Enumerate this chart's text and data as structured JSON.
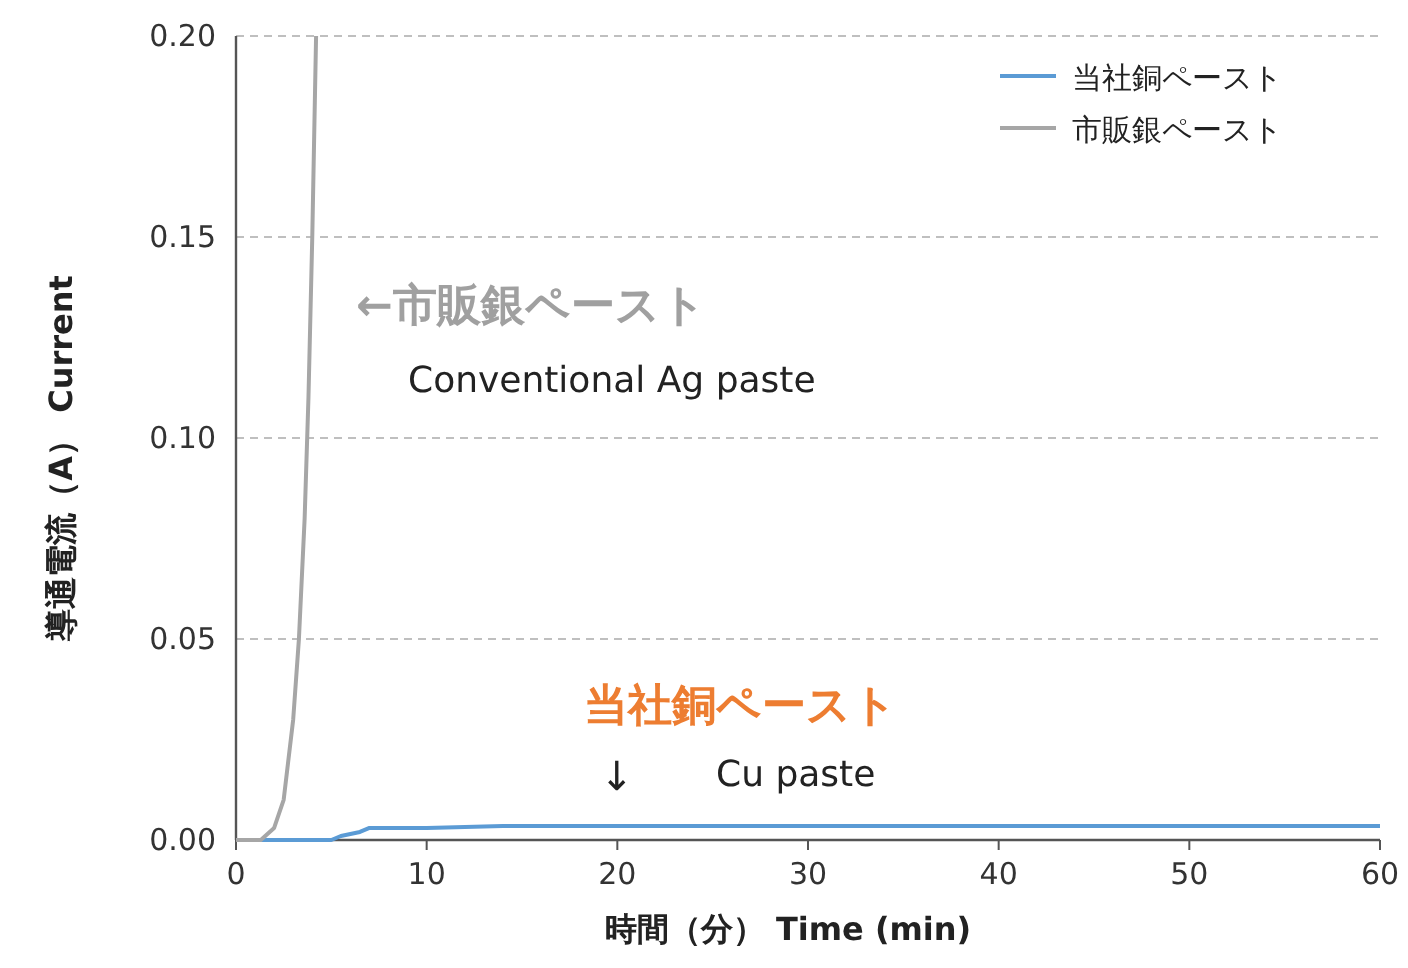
{
  "chart_data": {
    "type": "line",
    "xlabel": "時間（分）  Time (min)",
    "ylabel": "導通電流（A）   Current",
    "xlim": [
      0,
      60
    ],
    "xticks": [
      0,
      10,
      20,
      30,
      40,
      50,
      60
    ],
    "ylim": [
      0,
      0.2
    ],
    "yticks": [
      {
        "value": 0,
        "label": "0.00"
      },
      {
        "value": 0.05,
        "label": "0.05"
      },
      {
        "value": 0.1,
        "label": "0.10"
      },
      {
        "value": 0.15,
        "label": "0.15"
      },
      {
        "value": 0.2,
        "label": "0.20"
      }
    ],
    "grid": "y",
    "legend": "top right",
    "marker": "none",
    "line_style": "solid",
    "series": [
      {
        "name": "当社銅ペースト",
        "color": "#5b9bd5",
        "x": [
          0,
          5,
          5.5,
          6,
          6.5,
          7,
          10,
          14,
          20,
          30,
          40,
          50,
          60
        ],
        "values": [
          0,
          0,
          0.001,
          0.0015,
          0.002,
          0.003,
          0.003,
          0.0035,
          0.0035,
          0.0035,
          0.0035,
          0.0035,
          0.0035
        ]
      },
      {
        "name": "市販銀ペースト",
        "color": "#a6a6a6",
        "x": [
          0,
          1.3,
          2,
          2.5,
          3,
          3.3,
          3.6,
          3.8,
          4,
          4.2
        ],
        "values": [
          0,
          0,
          0.003,
          0.01,
          0.03,
          0.05,
          0.08,
          0.11,
          0.15,
          0.2
        ]
      }
    ],
    "annotations": [
      "←市販銀ペースト",
      "Conventional Ag paste",
      "当社銅ペースト",
      "↓",
      "Cu paste"
    ]
  }
}
